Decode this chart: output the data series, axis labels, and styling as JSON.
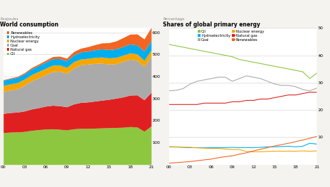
{
  "title_left": "World consumption",
  "subtitle_left": "Exajoules",
  "title_right": "Shares of global primary energy",
  "subtitle_right": "Percentage",
  "years": [
    2000,
    2001,
    2002,
    2003,
    2004,
    2005,
    2006,
    2007,
    2008,
    2009,
    2010,
    2011,
    2012,
    2013,
    2014,
    2015,
    2016,
    2017,
    2018,
    2019,
    2020,
    2021
  ],
  "stack_data": {
    "Oil": [
      145,
      147,
      148,
      150,
      155,
      158,
      161,
      162,
      160,
      157,
      162,
      164,
      164,
      165,
      166,
      167,
      168,
      169,
      172,
      170,
      151,
      175
    ],
    "Natural gas": [
      87,
      89,
      90,
      93,
      97,
      100,
      104,
      107,
      107,
      105,
      113,
      118,
      120,
      123,
      126,
      129,
      133,
      138,
      143,
      146,
      143,
      153
    ],
    "Coal": [
      100,
      102,
      106,
      117,
      128,
      135,
      143,
      153,
      157,
      152,
      163,
      171,
      172,
      171,
      168,
      160,
      157,
      161,
      163,
      157,
      151,
      163
    ],
    "Nuclear energy": [
      27,
      28,
      28,
      28,
      28,
      29,
      29,
      29,
      28,
      27,
      29,
      26,
      26,
      27,
      28,
      28,
      28,
      28,
      29,
      29,
      28,
      29
    ],
    "Hydroelectricity": [
      23,
      24,
      24,
      24,
      26,
      27,
      28,
      29,
      29,
      30,
      31,
      32,
      33,
      35,
      37,
      38,
      39,
      40,
      40,
      41,
      42,
      43
    ],
    "Renewables": [
      3,
      3,
      4,
      5,
      6,
      7,
      8,
      10,
      11,
      12,
      15,
      17,
      20,
      23,
      27,
      31,
      36,
      40,
      45,
      50,
      55,
      60
    ]
  },
  "stack_colors": {
    "Oil": "#8dc63f",
    "Natural gas": "#e02020",
    "Coal": "#aaaaaa",
    "Nuclear energy": "#f7a600",
    "Hydroelectricity": "#00aeef",
    "Renewables": "#f26522"
  },
  "stack_order": [
    "Oil",
    "Natural gas",
    "Coal",
    "Nuclear energy",
    "Hydroelectricity",
    "Renewables"
  ],
  "left_ylim": [
    0,
    620
  ],
  "left_yticks": [
    100,
    200,
    300,
    400,
    500,
    600
  ],
  "shares_data": {
    "Oil": [
      44.0,
      43.5,
      43.0,
      42.5,
      42.0,
      41.5,
      41.0,
      40.5,
      40.0,
      39.5,
      38.5,
      38.0,
      37.5,
      37.0,
      36.5,
      36.0,
      35.5,
      35.0,
      34.5,
      34.0,
      31.5,
      33.5
    ],
    "Coal": [
      27.0,
      27.2,
      27.8,
      29.5,
      30.5,
      31.0,
      31.5,
      32.0,
      32.0,
      30.5,
      31.5,
      32.5,
      32.0,
      31.5,
      30.5,
      29.5,
      29.0,
      29.0,
      28.5,
      27.5,
      27.0,
      28.0
    ],
    "Natural gas": [
      22.0,
      22.0,
      22.0,
      22.0,
      22.0,
      22.5,
      22.5,
      22.5,
      22.5,
      23.0,
      23.0,
      23.5,
      23.5,
      24.0,
      24.0,
      24.5,
      25.0,
      25.5,
      25.5,
      26.0,
      26.5,
      26.5
    ],
    "Hydroelectricity": [
      6.5,
      6.4,
      6.3,
      6.2,
      6.2,
      6.2,
      6.2,
      6.2,
      6.2,
      6.3,
      6.2,
      6.2,
      6.2,
      6.3,
      6.5,
      6.5,
      6.6,
      6.7,
      6.5,
      6.7,
      7.8,
      7.5
    ],
    "Nuclear energy": [
      6.5,
      6.5,
      6.4,
      6.3,
      6.1,
      6.0,
      5.9,
      5.9,
      5.7,
      5.5,
      5.5,
      4.8,
      4.7,
      4.7,
      4.8,
      4.9,
      4.9,
      4.9,
      4.9,
      5.0,
      4.9,
      5.0
    ],
    "Renewables": [
      0.5,
      0.7,
      0.9,
      1.1,
      1.4,
      1.7,
      2.0,
      2.5,
      2.9,
      3.2,
      3.8,
      4.3,
      5.0,
      5.6,
      6.2,
      6.8,
      7.3,
      7.8,
      8.4,
      9.0,
      9.6,
      10.3
    ]
  },
  "shares_colors": {
    "Oil": "#8dc63f",
    "Coal": "#aaaaaa",
    "Natural gas": "#e02020",
    "Hydroelectricity": "#00aeef",
    "Nuclear energy": "#f7a600",
    "Renewables": "#f26522"
  },
  "right_ylim": [
    0,
    50
  ],
  "right_yticks": [
    10,
    20,
    30,
    40,
    50
  ],
  "xtick_labels": [
    "00",
    "03",
    "06",
    "09",
    "12",
    "15",
    "18",
    "21"
  ],
  "xtick_positions": [
    2000,
    2003,
    2006,
    2009,
    2012,
    2015,
    2018,
    2021
  ],
  "bg_color": "#f5f3ef",
  "plot_bg": "#ffffff",
  "left_legend_order": [
    "Renewables",
    "Hydroelectricity",
    "Nuclear energy",
    "Coal",
    "Natural gas",
    "Oil"
  ],
  "right_legend_order": [
    "Oil",
    "Hydroelectricity",
    "Coal",
    "Nuclear energy",
    "Natural gas",
    "Renewables"
  ]
}
